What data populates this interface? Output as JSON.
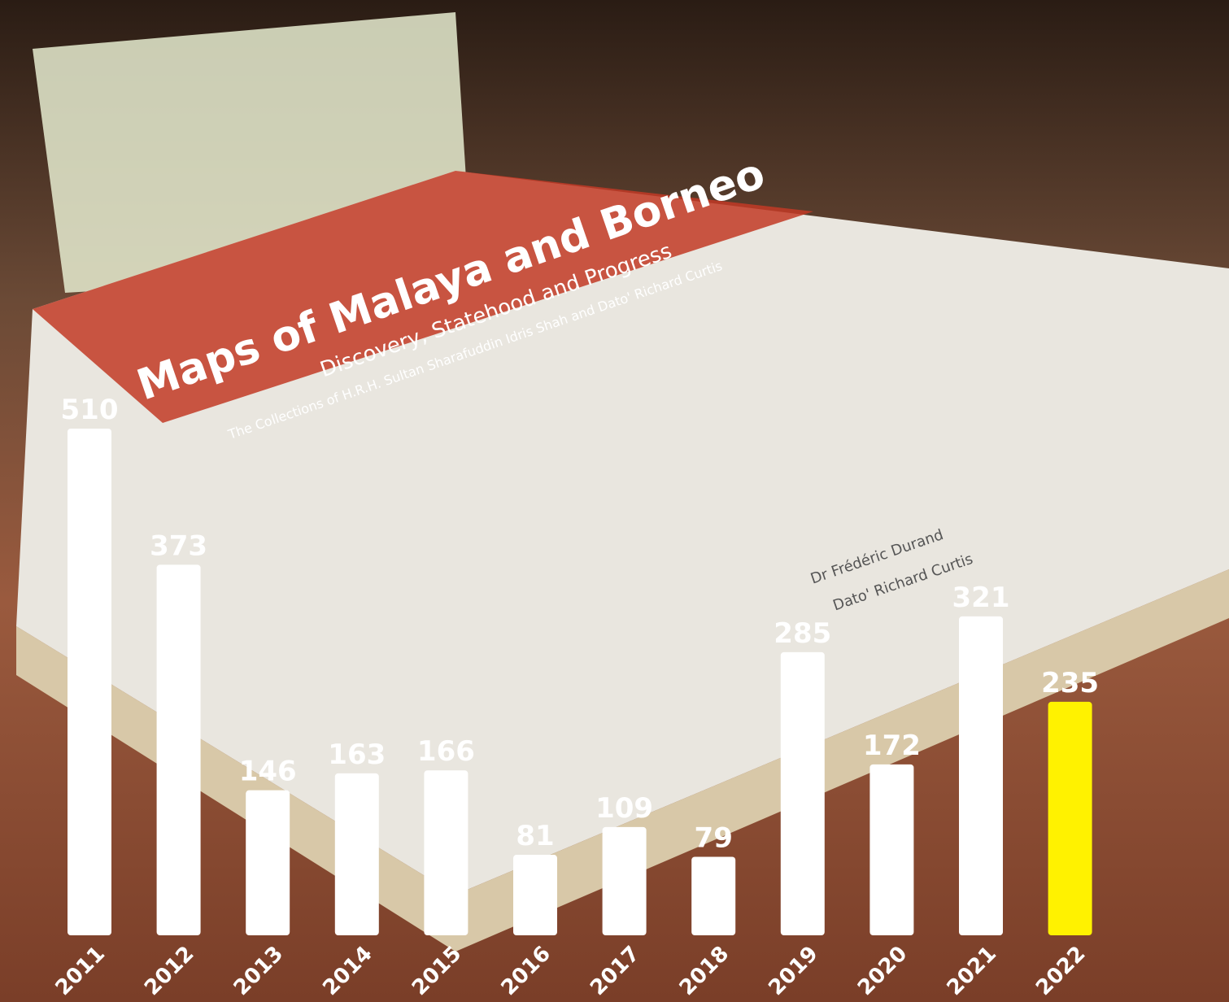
{
  "chart_data": {
    "type": "bar",
    "categories": [
      "2011",
      "2012",
      "2013",
      "2014",
      "2015",
      "2016",
      "2017",
      "2018",
      "2019",
      "2020",
      "2021",
      "2022"
    ],
    "values": [
      510,
      373,
      146,
      163,
      166,
      81,
      109,
      79,
      285,
      172,
      321,
      235
    ],
    "colors": [
      "#ffffff",
      "#ffffff",
      "#ffffff",
      "#ffffff",
      "#ffffff",
      "#ffffff",
      "#ffffff",
      "#ffffff",
      "#ffffff",
      "#ffffff",
      "#ffffff",
      "#fff200"
    ]
  },
  "photo": {
    "book_title": "Maps of Malaya and Borneo",
    "book_subtitle": "Discovery, Statehood and Progress",
    "book_collection": "The Collections of H.R.H. Sultan Sharafuddin Idris Shah and Dato' Richard Curtis",
    "author_1": "Dr Frédéric Durand",
    "author_2": "Dato' Richard Curtis"
  }
}
